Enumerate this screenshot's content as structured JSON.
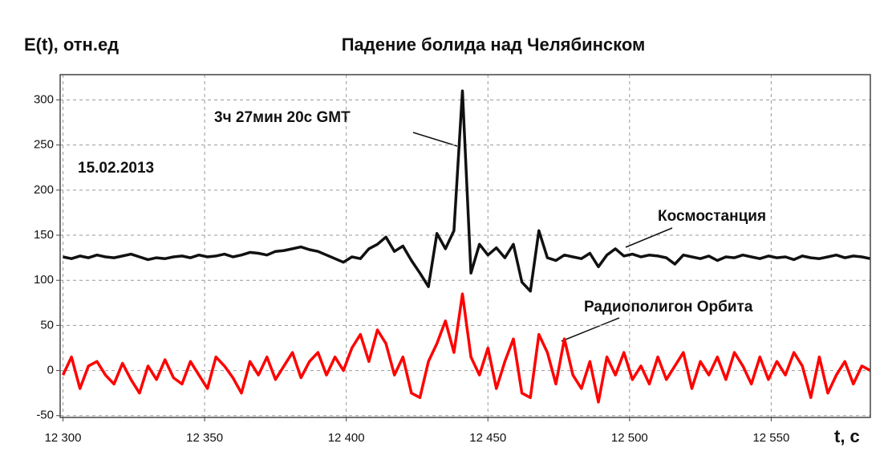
{
  "chart_data": {
    "type": "line",
    "title": "Падение болида над Челябинском",
    "y_label": "E(t), отн.ед",
    "x_label": "t, с",
    "annotations": [
      "3ч 27мин 20с GMT",
      "15.02.2013"
    ],
    "x": [
      12300,
      12303,
      12306,
      12309,
      12312,
      12315,
      12318,
      12321,
      12324,
      12327,
      12330,
      12333,
      12336,
      12339,
      12342,
      12345,
      12348,
      12351,
      12354,
      12357,
      12360,
      12363,
      12366,
      12369,
      12372,
      12375,
      12378,
      12381,
      12384,
      12387,
      12390,
      12393,
      12396,
      12399,
      12402,
      12405,
      12408,
      12411,
      12414,
      12417,
      12420,
      12423,
      12426,
      12429,
      12432,
      12435,
      12438,
      12441,
      12444,
      12447,
      12450,
      12453,
      12456,
      12459,
      12462,
      12465,
      12468,
      12471,
      12474,
      12477,
      12480,
      12483,
      12486,
      12489,
      12492,
      12495,
      12498,
      12501,
      12504,
      12507,
      12510,
      12513,
      12516,
      12519,
      12522,
      12525,
      12528,
      12531,
      12534,
      12537,
      12540,
      12543,
      12546,
      12549,
      12552,
      12555,
      12558,
      12561,
      12564,
      12567,
      12570,
      12573,
      12576,
      12579,
      12582,
      12585
    ],
    "series": [
      {
        "name": "Космостанция",
        "color": "#111111",
        "values": [
          126,
          124,
          127,
          125,
          128,
          126,
          125,
          127,
          129,
          126,
          123,
          125,
          124,
          126,
          127,
          125,
          128,
          126,
          127,
          129,
          126,
          128,
          131,
          130,
          128,
          132,
          133,
          135,
          137,
          134,
          132,
          128,
          124,
          120,
          126,
          124,
          135,
          140,
          148,
          132,
          138,
          122,
          108,
          93,
          152,
          135,
          155,
          310,
          108,
          140,
          128,
          136,
          125,
          140,
          98,
          88,
          155,
          125,
          122,
          128,
          126,
          124,
          130,
          115,
          128,
          135,
          127,
          129,
          126,
          128,
          127,
          125,
          118,
          128,
          126,
          124,
          127,
          122,
          126,
          125,
          128,
          126,
          124,
          127,
          125,
          126,
          123,
          127,
          125,
          124,
          126,
          128,
          125,
          127,
          126,
          124
        ]
      },
      {
        "name": "Радиополигон Орбита",
        "color": "#ff0000",
        "values": [
          -5,
          15,
          -20,
          5,
          10,
          -5,
          -15,
          8,
          -10,
          -25,
          5,
          -10,
          12,
          -8,
          -15,
          10,
          -5,
          -20,
          15,
          5,
          -8,
          -25,
          10,
          -5,
          15,
          -10,
          5,
          20,
          -8,
          10,
          20,
          -5,
          15,
          0,
          25,
          40,
          10,
          45,
          30,
          -5,
          15,
          -25,
          -30,
          10,
          30,
          55,
          20,
          85,
          15,
          -5,
          25,
          -20,
          10,
          35,
          -25,
          -30,
          40,
          20,
          -15,
          35,
          -5,
          -20,
          10,
          -35,
          15,
          -5,
          20,
          -10,
          5,
          -15,
          15,
          -10,
          5,
          20,
          -20,
          10,
          -5,
          15,
          -10,
          20,
          5,
          -15,
          15,
          -10,
          10,
          -5,
          20,
          5,
          -30,
          15,
          -25,
          -5,
          10,
          -15,
          5,
          0
        ]
      }
    ],
    "xlim": [
      12299,
      12585
    ],
    "ylim": [
      -52,
      328
    ],
    "xticks": [
      {
        "value": 12300,
        "label": "12 300"
      },
      {
        "value": 12350,
        "label": "12 350"
      },
      {
        "value": 12400,
        "label": "12 400"
      },
      {
        "value": 12450,
        "label": "12 450"
      },
      {
        "value": 12500,
        "label": "12 500"
      },
      {
        "value": 12550,
        "label": "12 550"
      }
    ],
    "yticks": [
      -50,
      0,
      50,
      100,
      150,
      200,
      250,
      300
    ],
    "grid": true
  }
}
